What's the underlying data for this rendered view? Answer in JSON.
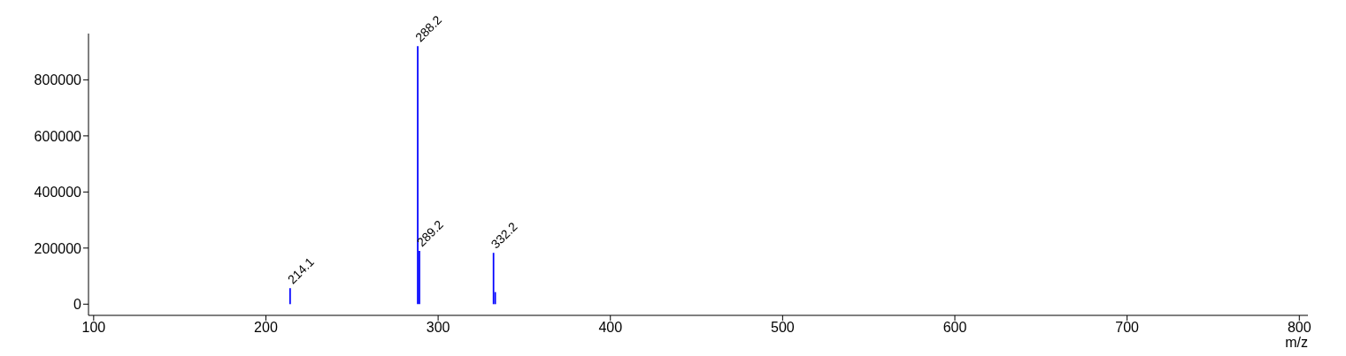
{
  "chart_data": {
    "type": "bar",
    "xlabel": "m/z",
    "x": [
      214.1,
      288.2,
      289.2,
      332.2,
      333.2
    ],
    "values": [
      57000,
      920000,
      190000,
      183000,
      43000
    ],
    "color": "#0000ff",
    "xlim": [
      97,
      805
    ],
    "xticks": [
      100,
      200,
      300,
      400,
      500,
      600,
      700,
      800
    ],
    "ylim": [
      -40000,
      965000
    ],
    "yticks": [
      0,
      200000,
      400000,
      600000,
      800000
    ],
    "grid": false,
    "annotations": [
      {
        "text": "214.1",
        "x": 214.1,
        "y": 57000
      },
      {
        "text": "288.2",
        "x": 288.2,
        "y": 920000
      },
      {
        "text": "289.2",
        "x": 289.2,
        "y": 190000
      },
      {
        "text": "332.2",
        "x": 332.2,
        "y": 183000
      }
    ]
  }
}
